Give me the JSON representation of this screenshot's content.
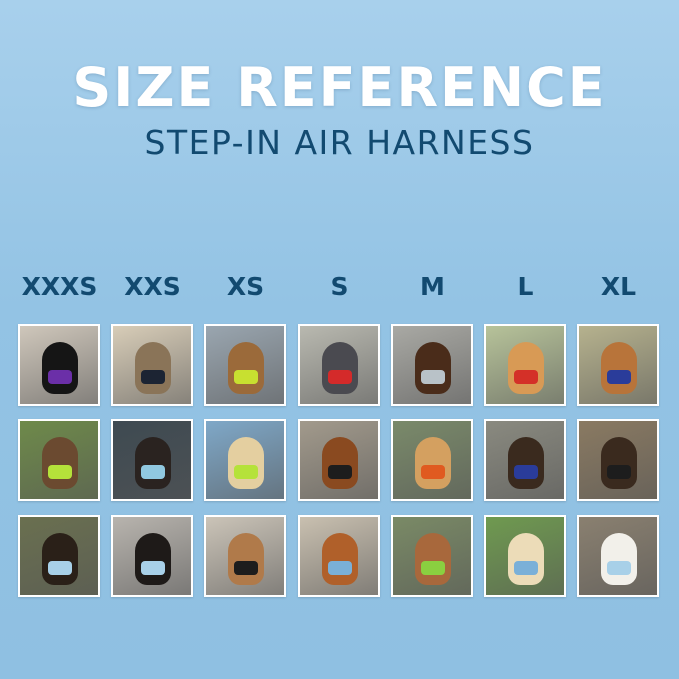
{
  "header": {
    "title": "SIZE REFERENCE",
    "subtitle": "STEP-IN AIR HARNESS"
  },
  "sizes": [
    "XXXS",
    "XXS",
    "XS",
    "S",
    "M",
    "L",
    "XL"
  ],
  "photos": [
    [
      {
        "bg": "#cfc7bb",
        "pet": "#151515",
        "harness": "#6b2fa8"
      },
      {
        "bg": "#d8cdb8",
        "pet": "#8a7458",
        "harness": "#1c2433"
      },
      {
        "bg": "#9aa6b0",
        "pet": "#9b6a3a",
        "harness": "#c8e030"
      },
      {
        "bg": "#b9b9b0",
        "pet": "#4a4a50",
        "harness": "#d42a2a"
      },
      {
        "bg": "#a9a9a4",
        "pet": "#4a2c1a",
        "harness": "#b9c2c8"
      },
      {
        "bg": "#b7c39a",
        "pet": "#d89a55",
        "harness": "#d43028"
      },
      {
        "bg": "#b6b28e",
        "pet": "#b8743a",
        "harness": "#2a3c9a"
      }
    ],
    [
      {
        "bg": "#6e8a4a",
        "pet": "#6b4a30",
        "harness": "#b5e23a"
      },
      {
        "bg": "#3e4a52",
        "pet": "#2a2320",
        "harness": "#90c8e0"
      },
      {
        "bg": "#7fa8c8",
        "pet": "#e4cfa0",
        "harness": "#b5e23a"
      },
      {
        "bg": "#a29a8c",
        "pet": "#8a4a20",
        "harness": "#1d1d1d"
      },
      {
        "bg": "#7a8a6a",
        "pet": "#d4a060",
        "harness": "#e05a20"
      },
      {
        "bg": "#8a8a80",
        "pet": "#3a2a1e",
        "harness": "#2a3c9a"
      },
      {
        "bg": "#8a7a62",
        "pet": "#3a2a1e",
        "harness": "#1d1d1d"
      }
    ],
    [
      {
        "bg": "#6a7050",
        "pet": "#2a2018",
        "harness": "#a8d0e8"
      },
      {
        "bg": "#b8b4ae",
        "pet": "#1e1a18",
        "harness": "#a8d0e8"
      },
      {
        "bg": "#cbc4b8",
        "pet": "#b07a4a",
        "harness": "#1d1d1d"
      },
      {
        "bg": "#c9c0b0",
        "pet": "#b0602a",
        "harness": "#7ab0d8"
      },
      {
        "bg": "#7a8a66",
        "pet": "#a8683c",
        "harness": "#8ad040"
      },
      {
        "bg": "#6f9a50",
        "pet": "#ecdcb8",
        "harness": "#7ab0d8"
      },
      {
        "bg": "#8a8070",
        "pet": "#f2f0ea",
        "harness": "#a8d0e8"
      }
    ]
  ]
}
